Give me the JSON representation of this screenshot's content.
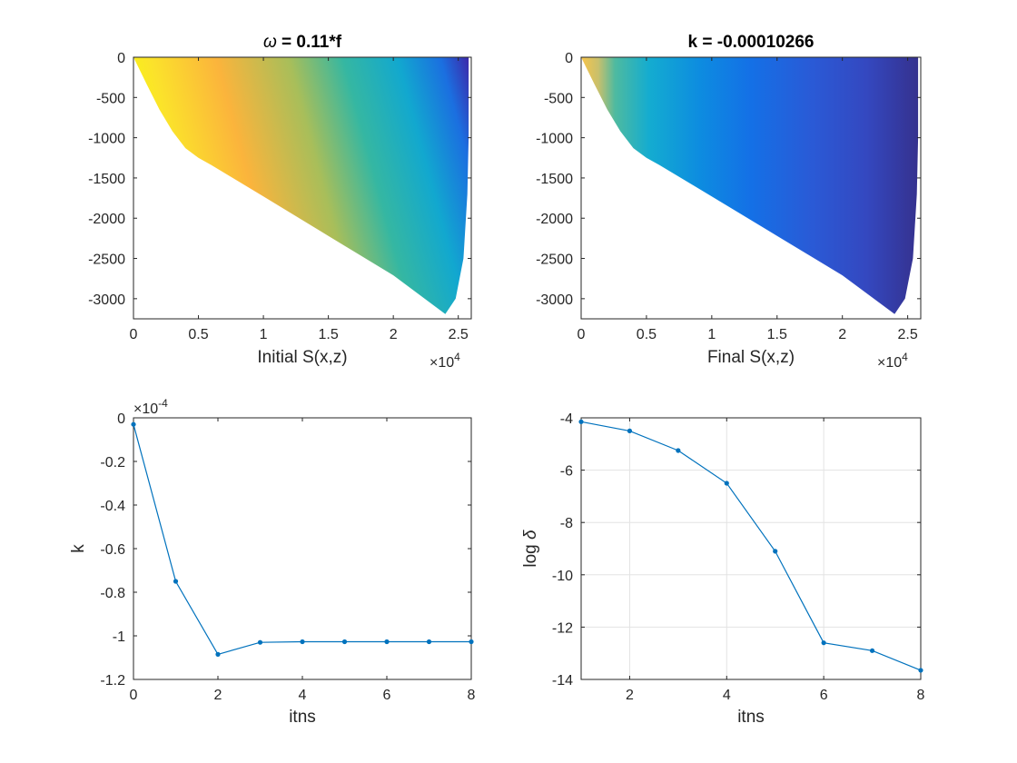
{
  "chart_data": [
    {
      "type": "heatmap",
      "title_prefix": "ω",
      "title_rest": " = 0.11*f",
      "xlabel": "Initial S(x,z)",
      "ylabel": "",
      "xlim": [
        0,
        26000
      ],
      "ylim": [
        -3250,
        0
      ],
      "x_ticks": [
        0,
        5000,
        10000,
        15000,
        20000,
        25000
      ],
      "x_tick_labels": [
        "0",
        "0.5",
        "1",
        "1.5",
        "2",
        "2.5"
      ],
      "x_exponent_base": "×10",
      "x_exponent_power": "4",
      "y_ticks": [
        0,
        -500,
        -1000,
        -1500,
        -2000,
        -2500,
        -3000
      ],
      "y_tick_labels": [
        "0",
        "-500",
        "-1000",
        "-1500",
        "-2000",
        "-2500",
        "-3000"
      ],
      "colormap": "parula",
      "grid": false
    },
    {
      "type": "heatmap",
      "title": "k = -0.00010266",
      "xlabel": "Final S(x,z)",
      "ylabel": "",
      "xlim": [
        0,
        26000
      ],
      "ylim": [
        -3250,
        0
      ],
      "x_ticks": [
        0,
        5000,
        10000,
        15000,
        20000,
        25000
      ],
      "x_tick_labels": [
        "0",
        "0.5",
        "1",
        "1.5",
        "2",
        "2.5"
      ],
      "x_exponent_base": "×10",
      "x_exponent_power": "4",
      "y_ticks": [
        0,
        -500,
        -1000,
        -1500,
        -2000,
        -2500,
        -3000
      ],
      "y_tick_labels": [
        "0",
        "-500",
        "-1000",
        "-1500",
        "-2000",
        "-2500",
        "-3000"
      ],
      "colormap": "parula",
      "grid": false
    },
    {
      "type": "line",
      "title": "",
      "xlabel": "itns",
      "ylabel": "k",
      "xlim": [
        0,
        8
      ],
      "ylim": [
        -0.00012,
        0
      ],
      "x_ticks": [
        0,
        2,
        4,
        6,
        8
      ],
      "x_tick_labels": [
        "0",
        "2",
        "4",
        "6",
        "8"
      ],
      "y_ticks": [
        0,
        -2e-05,
        -4e-05,
        -6e-05,
        -8e-05,
        -0.0001,
        -0.00012
      ],
      "y_tick_labels": [
        "0",
        "-0.2",
        "-0.4",
        "-0.6",
        "-0.8",
        "-1",
        "-1.2"
      ],
      "y_exponent_base": "×10",
      "y_exponent_power": "-4",
      "x": [
        0,
        1,
        2,
        3,
        4,
        5,
        6,
        7,
        8
      ],
      "values": [
        -3e-06,
        -7.5e-05,
        -0.0001085,
        -0.000103,
        -0.0001027,
        -0.0001027,
        -0.0001027,
        -0.0001027,
        -0.0001027
      ],
      "markers": true,
      "grid": false
    },
    {
      "type": "line",
      "title": "",
      "xlabel": "itns",
      "ylabel_prefix": "log ",
      "ylabel_symbol": "δ",
      "xlim": [
        1,
        8
      ],
      "ylim": [
        -14,
        -4
      ],
      "x_ticks": [
        2,
        4,
        6,
        8
      ],
      "x_tick_labels": [
        "2",
        "4",
        "6",
        "8"
      ],
      "y_ticks": [
        -4,
        -6,
        -8,
        -10,
        -12,
        -14
      ],
      "y_tick_labels": [
        "-4",
        "-6",
        "-8",
        "-10",
        "-12",
        "-14"
      ],
      "x": [
        1,
        2,
        3,
        4,
        5,
        6,
        7,
        8
      ],
      "values": [
        -4.15,
        -4.5,
        -5.25,
        -6.5,
        -9.1,
        -12.6,
        -12.9,
        -13.65
      ],
      "markers": true,
      "grid": true
    }
  ]
}
